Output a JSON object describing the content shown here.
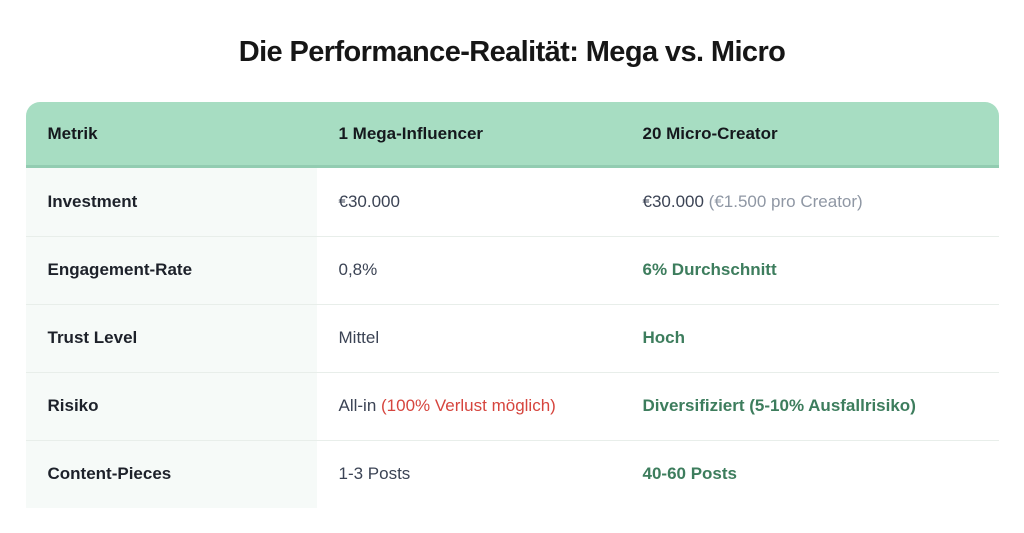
{
  "page": {
    "title": "Die Performance-Realität: Mega vs. Micro"
  },
  "colors": {
    "header_bg": "#a7ddc2",
    "header_border": "#92ccb1",
    "label_col_bg": "#f6faf8",
    "divider": "#e8eeea",
    "title_text": "#161616",
    "header_text": "#15181d",
    "label_text": "#1d212a",
    "value_text": "#3b4354",
    "muted_text": "#8f97a4",
    "positive_text": "#3d7d5d",
    "negative_text": "#d6453e"
  },
  "table": {
    "columns": [
      {
        "label": "Metrik"
      },
      {
        "label": "1 Mega-Influencer"
      },
      {
        "label": "20 Micro-Creator"
      }
    ],
    "rows": [
      {
        "metric": "Investment",
        "mega": [
          {
            "text": "€30.000",
            "style": "normal"
          }
        ],
        "micro": [
          {
            "text": "€30.000",
            "style": "normal"
          },
          {
            "text": " (€1.500 pro Creator)",
            "style": "muted"
          }
        ]
      },
      {
        "metric": "Engagement-Rate",
        "mega": [
          {
            "text": "0,8%",
            "style": "normal"
          }
        ],
        "micro": [
          {
            "text": "6% Durchschnitt",
            "style": "positive"
          }
        ]
      },
      {
        "metric": "Trust Level",
        "mega": [
          {
            "text": "Mittel",
            "style": "normal"
          }
        ],
        "micro": [
          {
            "text": "Hoch",
            "style": "positive"
          }
        ]
      },
      {
        "metric": "Risiko",
        "mega": [
          {
            "text": "All-in",
            "style": "normal"
          },
          {
            "text": " (100% Verlust möglich)",
            "style": "negative"
          }
        ],
        "micro": [
          {
            "text": "Diversifiziert (5-10% Ausfallrisiko)",
            "style": "positive"
          }
        ]
      },
      {
        "metric": "Content-Pieces",
        "mega": [
          {
            "text": "1-3 Posts",
            "style": "normal"
          }
        ],
        "micro": [
          {
            "text": "40-60 Posts",
            "style": "positive"
          }
        ]
      }
    ]
  },
  "chart_data": {
    "type": "table",
    "title": "Die Performance-Realität: Mega vs. Micro",
    "columns": [
      "Metrik",
      "1 Mega-Influencer",
      "20 Micro-Creator"
    ],
    "rows": [
      [
        "Investment",
        "€30.000",
        "€30.000 (€1.500 pro Creator)"
      ],
      [
        "Engagement-Rate",
        "0,8%",
        "6% Durchschnitt"
      ],
      [
        "Trust Level",
        "Mittel",
        "Hoch"
      ],
      [
        "Risiko",
        "All-in (100% Verlust möglich)",
        "Diversifiziert (5-10% Ausfallrisiko)"
      ],
      [
        "Content-Pieces",
        "1-3 Posts",
        "40-60 Posts"
      ]
    ],
    "legend_position": "none",
    "grid": "horizontal-dividers"
  }
}
